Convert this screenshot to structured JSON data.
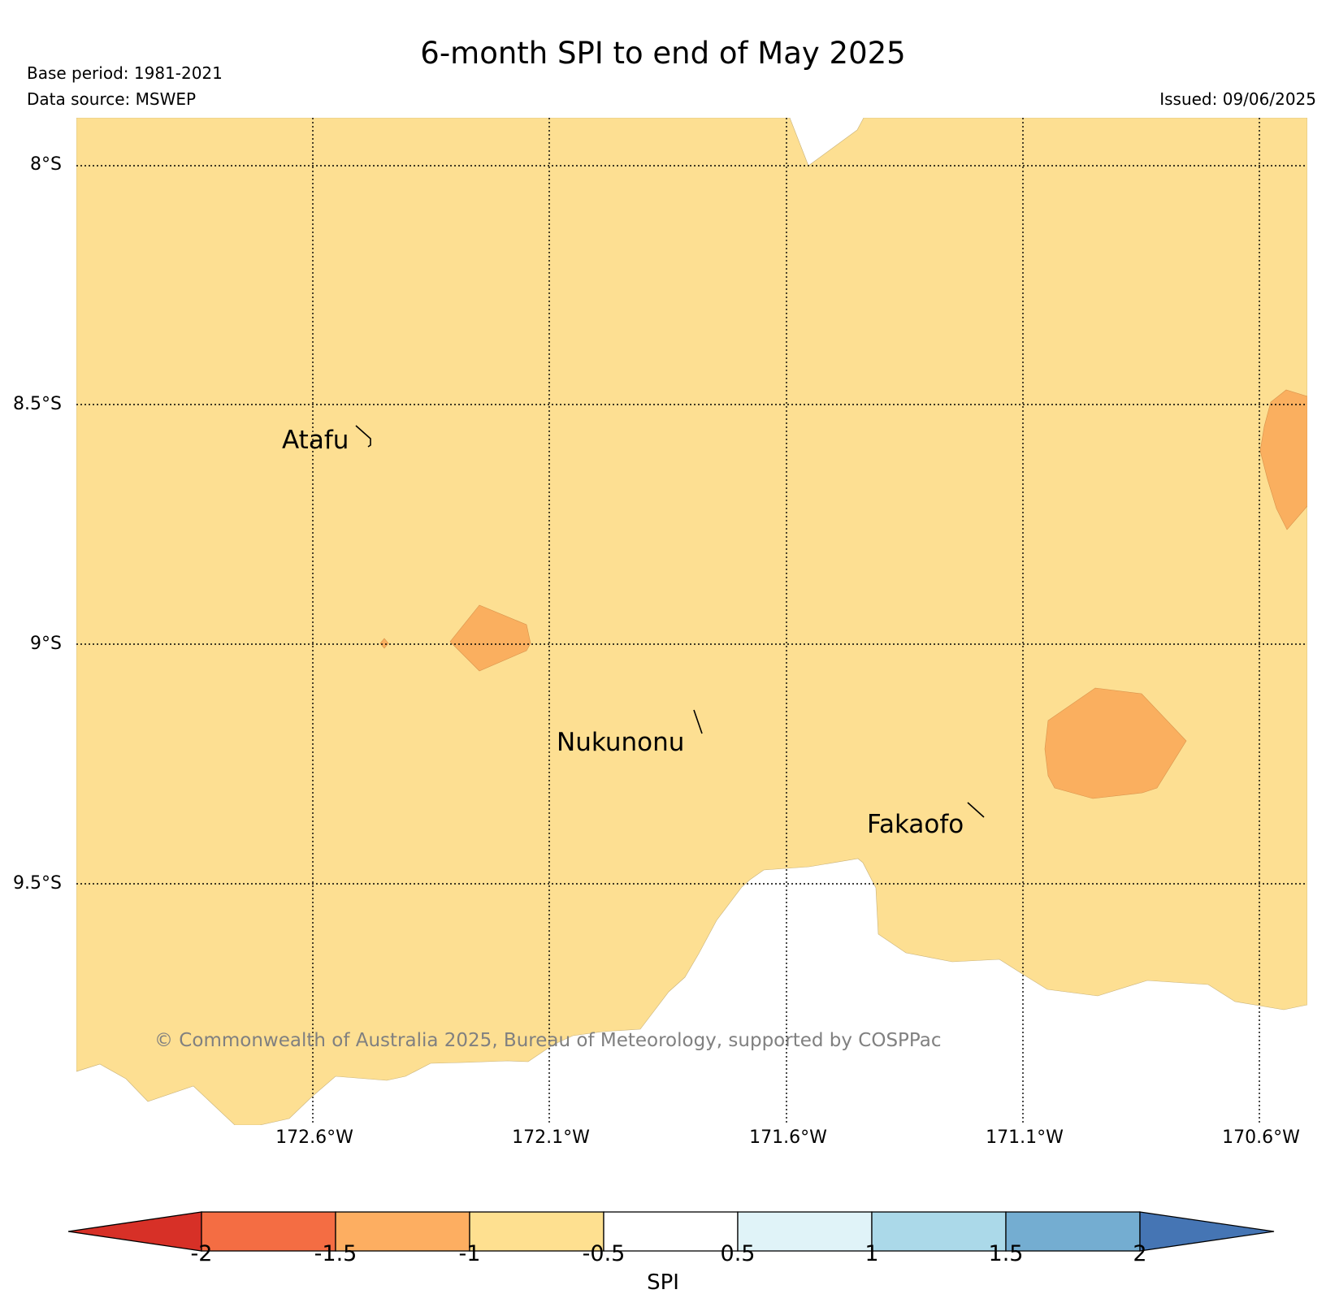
{
  "title": "6-month SPI to end of May 2025",
  "base_period": "Base period: 1981-2021",
  "data_source": "Data source: MSWEP",
  "issued": "Issued: 09/06/2025",
  "copyright": "© Commonwealth of Australia 2025, Bureau of Meteorology, supported by COSPPac",
  "map": {
    "latitude_labels": [
      "8°S",
      "8.5°S",
      "9°S",
      "9.5°S"
    ],
    "longitude_labels": [
      "172.6°W",
      "172.1°W",
      "171.6°W",
      "171.1°W",
      "170.6°W"
    ],
    "places": [
      "Atafu",
      "Nukunonu",
      "Fakaofo"
    ],
    "grid": true,
    "category_colors": {
      "spi_-1.0_to_-0.5": "#FDDF92",
      "spi_-1.5_to_-1.0": "#FAAF5F",
      "spi_-0.5_to_0.5": "#FFFFFF"
    }
  },
  "colorbar": {
    "label": "SPI",
    "ticks": [
      "-2",
      "-1.5",
      "-1",
      "-0.5",
      "0.5",
      "1",
      "1.5",
      "2"
    ],
    "colors": [
      "#D73027",
      "#F46D43",
      "#FDAE61",
      "#FEE090",
      "#FFFFFF",
      "#E0F3F8",
      "#ABD9E9",
      "#74ADD1",
      "#4575B4"
    ]
  }
}
